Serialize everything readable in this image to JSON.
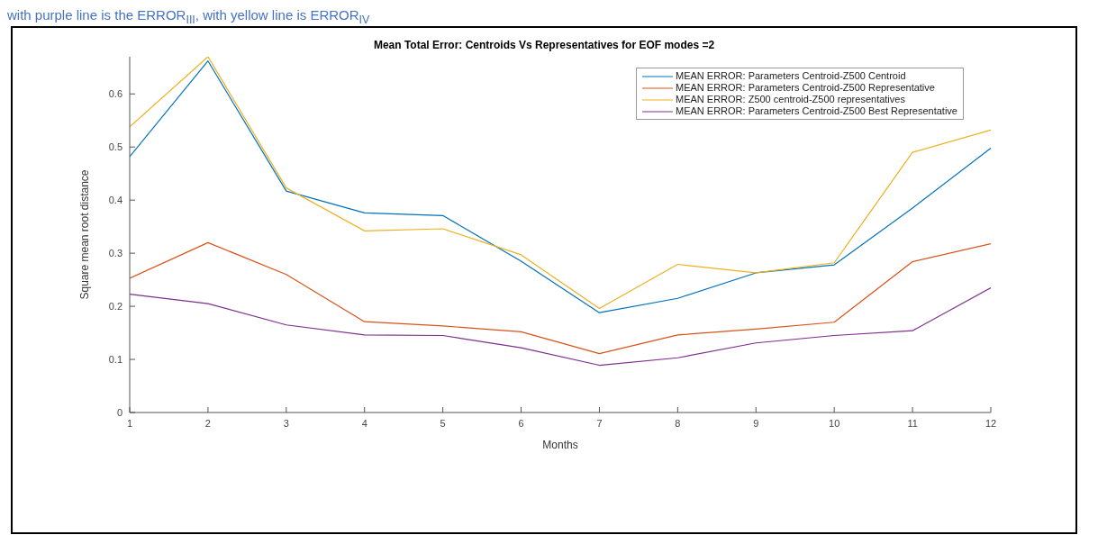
{
  "chart_data": {
    "type": "line",
    "title": "Mean Total Error: Centroids Vs Representatives for EOF modes =2",
    "xlabel": "Months",
    "ylabel": "Square mean root distance",
    "annotations": [
      "with purple line is the ERROR$_{III}$, with yellow line is ERROR$_{IV}$"
    ],
    "x": [
      1,
      2,
      3,
      4,
      5,
      6,
      7,
      8,
      9,
      10,
      11,
      12
    ],
    "series": [
      {
        "name": "MEAN ERROR: Parameters Centroid-Z500 Centroid",
        "color": "#0072bd",
        "values": [
          0.482,
          0.662,
          0.417,
          0.376,
          0.371,
          0.285,
          0.188,
          0.215,
          0.263,
          0.278,
          0.385,
          0.498
        ]
      },
      {
        "name": "MEAN ERROR: Parameters Centroid-Z500 Representative",
        "color": "#d95319",
        "values": [
          0.253,
          0.32,
          0.26,
          0.171,
          0.163,
          0.152,
          0.111,
          0.146,
          0.157,
          0.17,
          0.284,
          0.318
        ]
      },
      {
        "name": "MEAN ERROR: Z500 centroid-Z500 representatives",
        "color": "#edb120",
        "values": [
          0.538,
          0.67,
          0.423,
          0.342,
          0.346,
          0.297,
          0.196,
          0.279,
          0.263,
          0.282,
          0.49,
          0.532
        ]
      },
      {
        "name": "MEAN ERROR: Parameters Centroid-Z500 Best Representative",
        "color": "#7e2f8e",
        "values": [
          0.223,
          0.205,
          0.165,
          0.146,
          0.145,
          0.122,
          0.089,
          0.103,
          0.131,
          0.145,
          0.154,
          0.235
        ]
      }
    ],
    "xlim": [
      1,
      12
    ],
    "xticks": [
      1,
      2,
      3,
      4,
      5,
      6,
      7,
      8,
      9,
      10,
      11,
      12
    ],
    "ylim": [
      0,
      0.67
    ],
    "yticks": [
      0,
      0.1,
      0.2,
      0.3,
      0.4,
      0.5,
      0.6
    ],
    "grid": false,
    "legend": "top right",
    "marker": "none",
    "line_style": "solid"
  }
}
